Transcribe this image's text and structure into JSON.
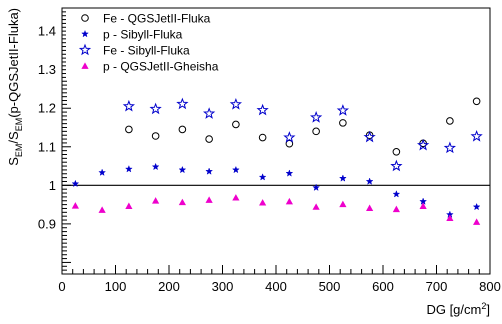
{
  "chart_data": {
    "type": "scatter",
    "xlabel": "DG [g/cm²]",
    "ylabel": "S_EM/S_EM(p-QGSJetII-Fluka)",
    "ylabel_main": "S",
    "ylabel_sub1": "EM",
    "ylabel_mid": "/S",
    "ylabel_sub2": "EM",
    "ylabel_tail": "(p-QGSJetII-Fluka)",
    "xlim": [
      0,
      800
    ],
    "ylim": [
      0.77,
      1.46
    ],
    "xticks": [
      0,
      100,
      200,
      300,
      400,
      500,
      600,
      700,
      800
    ],
    "xtick_labels": [
      "0",
      "100",
      "200",
      "300",
      "400",
      "500",
      "600",
      "700",
      "800"
    ],
    "yticks": [
      0.9,
      1.0,
      1.1,
      1.2,
      1.3,
      1.4
    ],
    "ytick_labels": [
      "0.9",
      "1",
      "1.1",
      "1.2",
      "1.3",
      "1.4"
    ],
    "reference_line": 1.0,
    "legend_position": "top-left",
    "series": [
      {
        "name": "Fe - QGSJetII-Fluka",
        "marker": "open-circle",
        "color": "#000000",
        "x": [
          125,
          175,
          225,
          275,
          325,
          375,
          425,
          475,
          525,
          575,
          625,
          675,
          725,
          775
        ],
        "y": [
          1.145,
          1.128,
          1.145,
          1.12,
          1.158,
          1.124,
          1.108,
          1.14,
          1.162,
          1.13,
          1.087,
          1.109,
          1.167,
          1.218
        ]
      },
      {
        "name": "p - Sibyll-Fluka",
        "marker": "filled-star",
        "color": "#0000cc",
        "x": [
          25,
          75,
          125,
          175,
          225,
          275,
          325,
          375,
          425,
          475,
          525,
          575,
          625,
          675,
          725,
          775
        ],
        "y": [
          1.004,
          1.033,
          1.042,
          1.048,
          1.04,
          1.036,
          1.04,
          1.021,
          1.031,
          0.994,
          1.018,
          1.01,
          0.977,
          0.958,
          0.924,
          0.944
        ]
      },
      {
        "name": "Fe - Sibyll-Fluka",
        "marker": "open-star",
        "color": "#0000cc",
        "x": [
          125,
          175,
          225,
          275,
          325,
          375,
          425,
          475,
          525,
          575,
          625,
          675,
          725,
          775
        ],
        "y": [
          1.205,
          1.198,
          1.211,
          1.186,
          1.21,
          1.195,
          1.124,
          1.176,
          1.194,
          1.125,
          1.05,
          1.104,
          1.097,
          1.127
        ]
      },
      {
        "name": "p - QGSJetII-Gheisha",
        "marker": "filled-triangle",
        "color": "#ee00cc",
        "x": [
          25,
          75,
          125,
          175,
          225,
          275,
          325,
          375,
          425,
          475,
          525,
          575,
          625,
          675,
          725,
          775
        ],
        "y": [
          0.947,
          0.936,
          0.946,
          0.96,
          0.956,
          0.962,
          0.968,
          0.955,
          0.958,
          0.944,
          0.951,
          0.941,
          0.938,
          0.946,
          0.915,
          0.905
        ]
      }
    ]
  }
}
